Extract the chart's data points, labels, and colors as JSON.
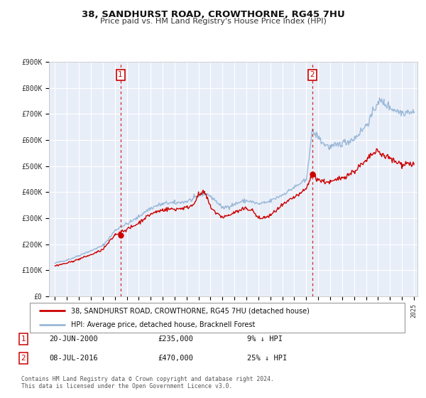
{
  "title": "38, SANDHURST ROAD, CROWTHORNE, RG45 7HU",
  "subtitle": "Price paid vs. HM Land Registry's House Price Index (HPI)",
  "legend_line1": "38, SANDHURST ROAD, CROWTHORNE, RG45 7HU (detached house)",
  "legend_line2": "HPI: Average price, detached house, Bracknell Forest",
  "sale1_date": "20-JUN-2000",
  "sale1_price": "£235,000",
  "sale1_hpi": "9% ↓ HPI",
  "sale1_year": 2000.47,
  "sale1_value": 235000,
  "sale2_date": "08-JUL-2016",
  "sale2_price": "£470,000",
  "sale2_hpi": "25% ↓ HPI",
  "sale2_year": 2016.52,
  "sale2_value": 470000,
  "footer_line1": "Contains HM Land Registry data © Crown copyright and database right 2024.",
  "footer_line2": "This data is licensed under the Open Government Licence v3.0.",
  "hpi_color": "#9ab8d8",
  "sale_color": "#cc0000",
  "vline_color": "#cc0000",
  "plot_bg": "#e8eef8",
  "grid_color": "#ffffff",
  "ylim": [
    0,
    900000
  ],
  "xlim_start": 1994.5,
  "xlim_end": 2025.3
}
